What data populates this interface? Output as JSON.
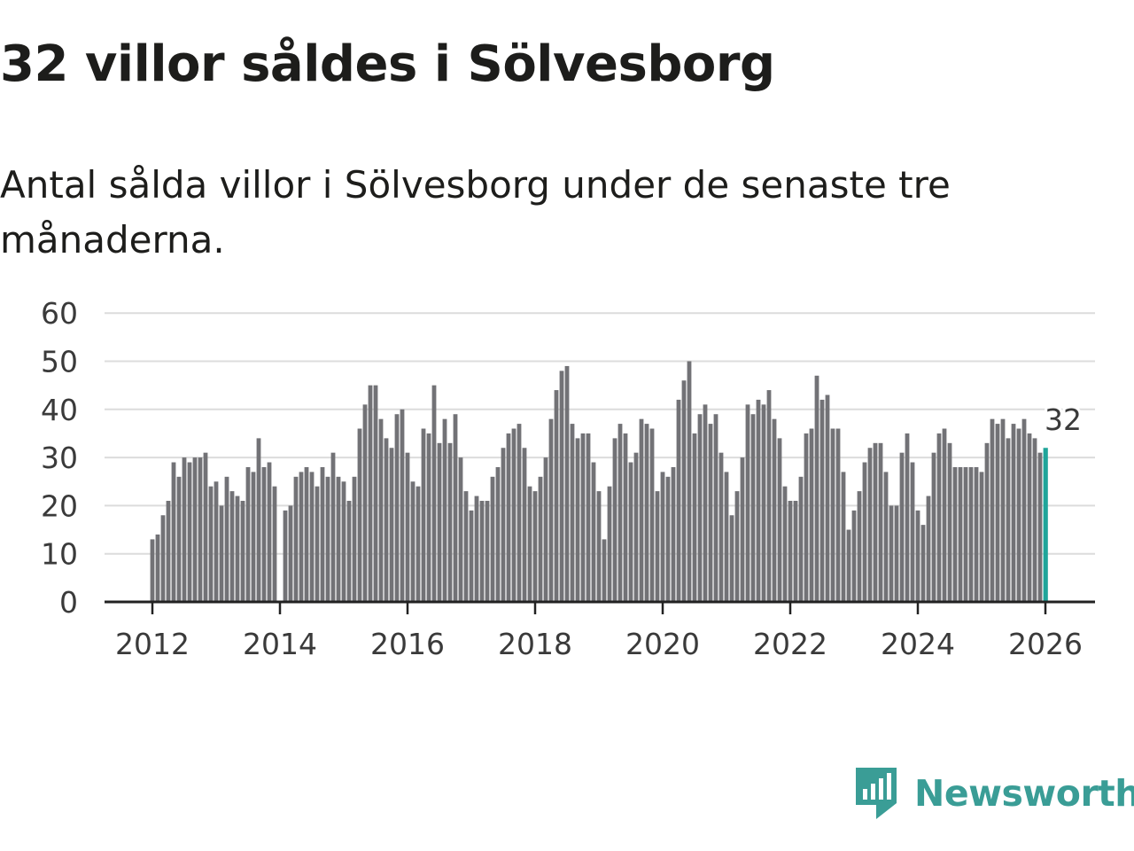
{
  "header": {
    "title": "32 villor såldes i Sölvesborg",
    "subtitle": "Antal sålda villor i Sölvesborg under de senaste tre månaderna."
  },
  "brand": {
    "name": "Newsworthy",
    "color": "#3a9d96"
  },
  "chart_data": {
    "type": "bar",
    "title": "32 villor såldes i Sölvesborg",
    "subtitle": "Antal sålda villor i Sölvesborg under de senaste tre månaderna.",
    "xlabel": "",
    "ylabel": "",
    "ylim": [
      0,
      60
    ],
    "yticks": [
      0,
      10,
      20,
      30,
      40,
      50,
      60
    ],
    "xticks": [
      "2012",
      "2014",
      "2016",
      "2018",
      "2020",
      "2022",
      "2024",
      "2026"
    ],
    "grid": true,
    "start": "2012-01",
    "frequency": "monthly",
    "bar_color": "#727276",
    "highlight_color": "#1fa59a",
    "highlight_label": "32",
    "values": [
      13,
      14,
      18,
      21,
      29,
      26,
      30,
      29,
      30,
      30,
      31,
      24,
      25,
      20,
      26,
      23,
      22,
      21,
      28,
      27,
      34,
      28,
      29,
      24,
      0,
      19,
      20,
      26,
      27,
      28,
      27,
      24,
      28,
      26,
      31,
      26,
      25,
      21,
      26,
      36,
      41,
      45,
      45,
      38,
      34,
      32,
      39,
      40,
      31,
      25,
      24,
      36,
      35,
      45,
      33,
      38,
      33,
      39,
      30,
      23,
      19,
      22,
      21,
      21,
      26,
      28,
      32,
      35,
      36,
      37,
      32,
      24,
      23,
      26,
      30,
      38,
      44,
      48,
      49,
      37,
      34,
      35,
      35,
      29,
      23,
      13,
      24,
      34,
      37,
      35,
      29,
      31,
      38,
      37,
      36,
      23,
      27,
      26,
      28,
      42,
      46,
      50,
      35,
      39,
      41,
      37,
      39,
      31,
      27,
      18,
      23,
      30,
      41,
      39,
      42,
      41,
      44,
      38,
      34,
      24,
      21,
      21,
      26,
      35,
      36,
      47,
      42,
      43,
      36,
      36,
      27,
      15,
      19,
      23,
      29,
      32,
      33,
      33,
      27,
      20,
      20,
      31,
      35,
      29,
      19,
      16,
      22,
      31,
      35,
      36,
      33,
      28,
      28,
      28,
      28,
      28,
      27,
      33,
      38,
      37,
      38,
      34,
      37,
      36,
      38,
      35,
      34,
      31,
      32
    ]
  }
}
